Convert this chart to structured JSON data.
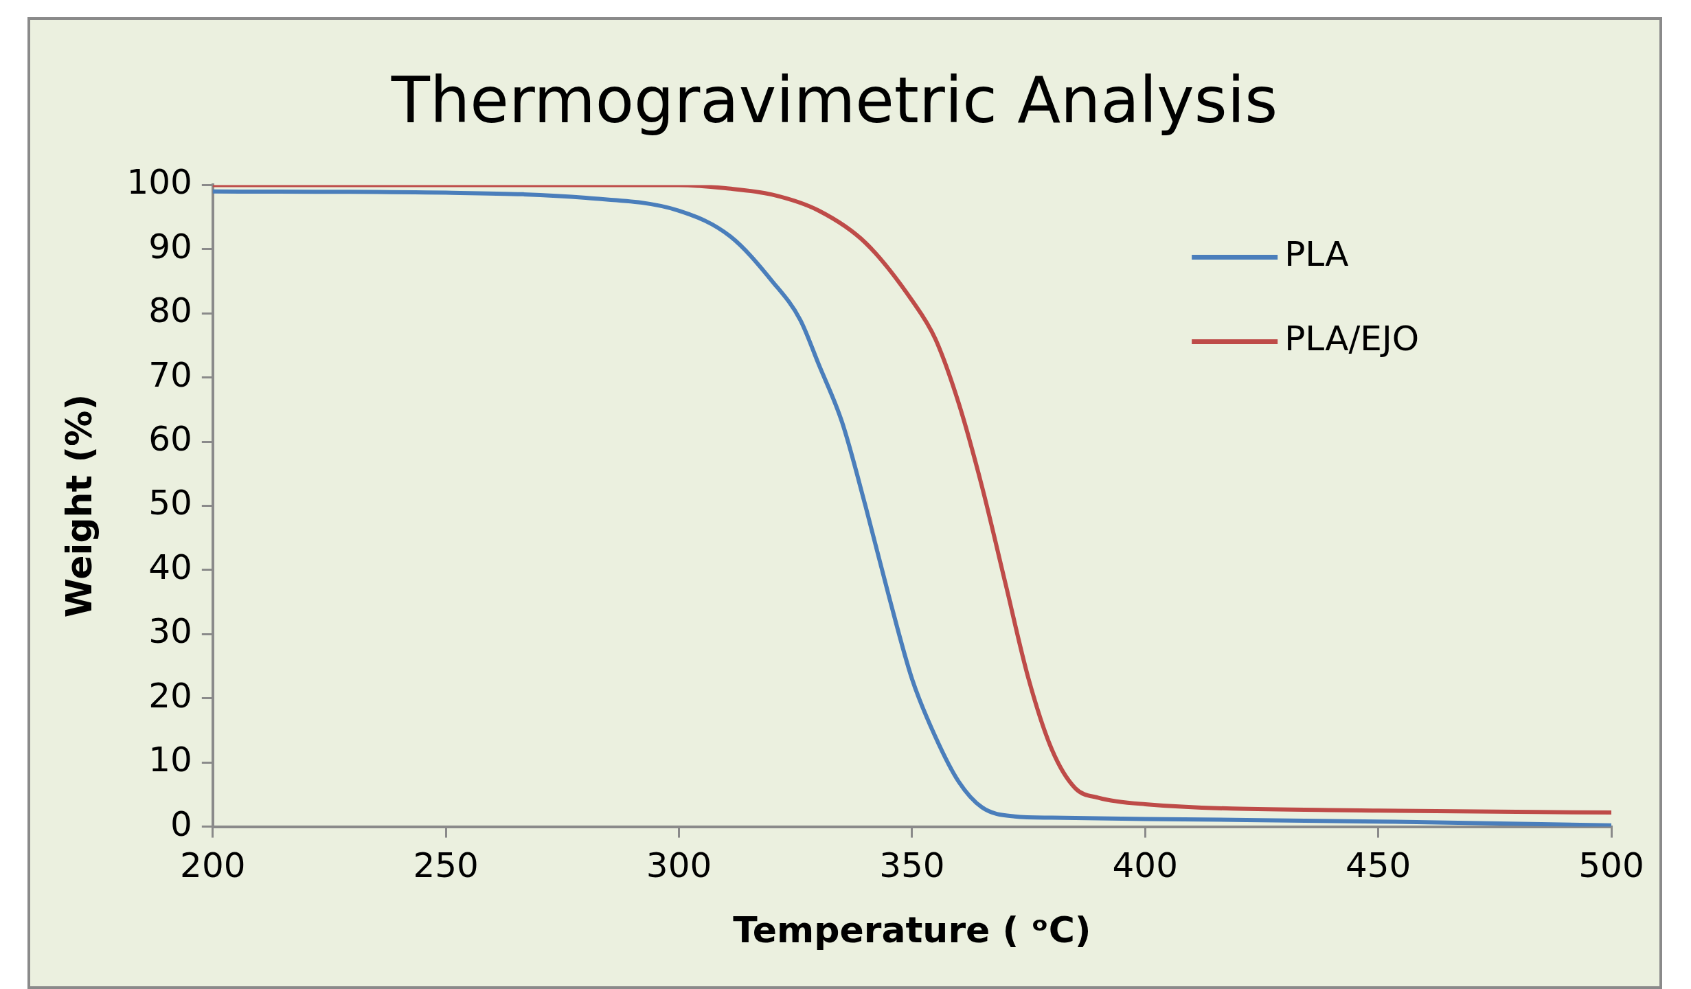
{
  "chart_data": {
    "type": "line",
    "title": "Thermogravimetric Analysis",
    "xlabel": "Temperature ( ᵒC)",
    "ylabel": "Weight (%)",
    "xlim": [
      200,
      500
    ],
    "xticks": [
      200,
      250,
      300,
      350,
      400,
      450,
      500
    ],
    "ylim": [
      0,
      100
    ],
    "yticks": [
      0,
      10,
      20,
      30,
      40,
      50,
      60,
      70,
      80,
      90,
      100
    ],
    "grid": false,
    "legend": "top right",
    "marker": "none",
    "line_style": "solid",
    "series": [
      {
        "name": "PLA",
        "color": "#4a7ebb",
        "x": [
          200,
          250,
          280,
          300,
          311,
          320,
          326,
          330,
          335,
          340,
          345,
          350,
          355,
          360,
          365,
          372,
          380,
          400,
          450,
          500
        ],
        "values": [
          99,
          98.8,
          98,
          96,
          92,
          85,
          79,
          72,
          63,
          50,
          36,
          23,
          14,
          7,
          3,
          1.6,
          1.4,
          1.2,
          0.8,
          0.2
        ]
      },
      {
        "name": "PLA/EJO",
        "color": "#be4b48",
        "x": [
          200,
          250,
          300,
          310,
          320,
          330,
          340,
          350,
          355,
          360,
          365,
          370,
          375,
          380,
          385,
          390,
          400,
          450,
          500
        ],
        "values": [
          100,
          100,
          100,
          99.5,
          98.5,
          96,
          91,
          82,
          76,
          66,
          53,
          38,
          23,
          12,
          6,
          4.5,
          3.5,
          2.5,
          2.2
        ]
      }
    ]
  }
}
